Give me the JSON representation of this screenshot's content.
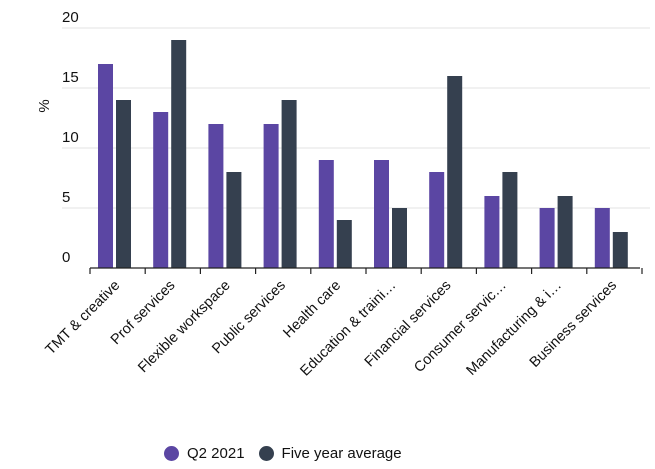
{
  "chart_data": {
    "type": "bar",
    "title": "",
    "xlabel": "",
    "ylabel": "%",
    "ylim": [
      0,
      20
    ],
    "yticks": [
      0,
      5,
      10,
      15,
      20
    ],
    "grid": true,
    "legend_position": "bottom",
    "categories": [
      "TMT & creative",
      "Prof services",
      "Flexible workspace",
      "Public services",
      "Health care",
      "Education & traini…",
      "Financial services",
      "Consumer  servic…",
      "Manufacturing & i…",
      "Business services"
    ],
    "series": [
      {
        "name": "Q2 2021",
        "color": "#5b46a3",
        "values": [
          17,
          13,
          12,
          12,
          9,
          9,
          8,
          6,
          5,
          5
        ]
      },
      {
        "name": "Five year average",
        "color": "#35404f",
        "values": [
          14,
          19,
          8,
          14,
          4,
          5,
          16,
          8,
          6,
          3
        ]
      }
    ]
  }
}
